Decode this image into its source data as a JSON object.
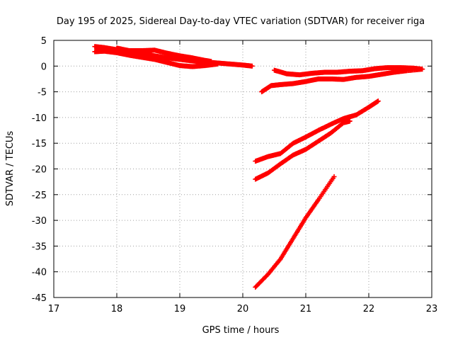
{
  "chart_data": {
    "type": "scatter",
    "title": "Day 195 of 2025, Sidereal Day-to-day VTEC variation (SDTVAR) for receiver riga",
    "xlabel": "GPS time / hours",
    "ylabel": "SDTVAR / TECUs",
    "xlim": [
      17,
      23
    ],
    "ylim": [
      -45,
      5
    ],
    "xticks": [
      "17",
      "18",
      "19",
      "20",
      "21",
      "22",
      "23"
    ],
    "yticks": [
      "5",
      "0",
      "-5",
      "-10",
      "-15",
      "-20",
      "-25",
      "-30",
      "-35",
      "-40",
      "-45"
    ],
    "grid": true,
    "marker": "plus",
    "color": "#ff0000",
    "series": [
      {
        "points": [
          [
            17.65,
            3.8
          ],
          [
            17.8,
            3.6
          ],
          [
            18.0,
            3.2
          ],
          [
            18.2,
            2.8
          ],
          [
            18.4,
            2.4
          ],
          [
            18.6,
            2.0
          ],
          [
            18.8,
            1.6
          ],
          [
            19.0,
            1.3
          ],
          [
            19.2,
            1.0
          ],
          [
            19.4,
            0.8
          ],
          [
            19.6,
            0.6
          ],
          [
            19.8,
            0.4
          ],
          [
            20.0,
            0.2
          ],
          [
            20.15,
            0.0
          ]
        ]
      },
      {
        "points": [
          [
            17.65,
            2.8
          ],
          [
            17.8,
            2.9
          ],
          [
            18.0,
            2.6
          ],
          [
            18.2,
            2.1
          ],
          [
            18.4,
            1.7
          ],
          [
            18.6,
            1.3
          ],
          [
            18.8,
            0.7
          ],
          [
            19.0,
            0.1
          ],
          [
            19.2,
            -0.1
          ],
          [
            19.4,
            0.1
          ],
          [
            19.6,
            0.4
          ]
        ]
      },
      {
        "points": [
          [
            18.0,
            3.5
          ],
          [
            18.2,
            3.0
          ],
          [
            18.4,
            3.0
          ],
          [
            18.6,
            3.1
          ],
          [
            18.8,
            2.5
          ],
          [
            19.0,
            2.0
          ],
          [
            19.2,
            1.6
          ],
          [
            19.4,
            1.1
          ],
          [
            19.5,
            0.9
          ]
        ]
      },
      {
        "points": [
          [
            20.3,
            -5.0
          ],
          [
            20.45,
            -3.8
          ],
          [
            20.6,
            -3.6
          ],
          [
            20.8,
            -3.4
          ],
          [
            21.0,
            -3.0
          ],
          [
            21.2,
            -2.5
          ],
          [
            21.4,
            -2.5
          ],
          [
            21.6,
            -2.6
          ],
          [
            21.8,
            -2.2
          ],
          [
            22.0,
            -2.0
          ],
          [
            22.2,
            -1.6
          ],
          [
            22.4,
            -1.2
          ],
          [
            22.6,
            -0.9
          ],
          [
            22.85,
            -0.6
          ]
        ]
      },
      {
        "points": [
          [
            20.5,
            -0.8
          ],
          [
            20.7,
            -1.5
          ],
          [
            20.9,
            -1.7
          ],
          [
            21.1,
            -1.4
          ],
          [
            21.3,
            -1.2
          ],
          [
            21.5,
            -1.2
          ],
          [
            21.7,
            -1.0
          ],
          [
            21.9,
            -0.9
          ],
          [
            22.1,
            -0.5
          ],
          [
            22.3,
            -0.3
          ],
          [
            22.5,
            -0.3
          ],
          [
            22.7,
            -0.4
          ],
          [
            22.85,
            -0.6
          ]
        ]
      },
      {
        "points": [
          [
            20.2,
            -18.5
          ],
          [
            20.4,
            -17.6
          ],
          [
            20.6,
            -17.0
          ],
          [
            20.8,
            -15.0
          ],
          [
            21.0,
            -13.8
          ],
          [
            21.2,
            -12.5
          ],
          [
            21.4,
            -11.3
          ],
          [
            21.6,
            -10.2
          ],
          [
            21.8,
            -9.5
          ],
          [
            22.0,
            -8.0
          ],
          [
            22.15,
            -6.8
          ]
        ]
      },
      {
        "points": [
          [
            20.2,
            -22.0
          ],
          [
            20.4,
            -20.8
          ],
          [
            20.6,
            -19.0
          ],
          [
            20.8,
            -17.3
          ],
          [
            21.0,
            -16.2
          ],
          [
            21.2,
            -14.6
          ],
          [
            21.4,
            -13.0
          ],
          [
            21.6,
            -11.0
          ],
          [
            21.7,
            -10.7
          ]
        ]
      },
      {
        "points": [
          [
            20.2,
            -43.0
          ],
          [
            20.4,
            -40.5
          ],
          [
            20.6,
            -37.5
          ],
          [
            20.8,
            -33.5
          ],
          [
            21.0,
            -29.5
          ],
          [
            21.2,
            -26.0
          ],
          [
            21.45,
            -21.5
          ]
        ]
      }
    ]
  }
}
